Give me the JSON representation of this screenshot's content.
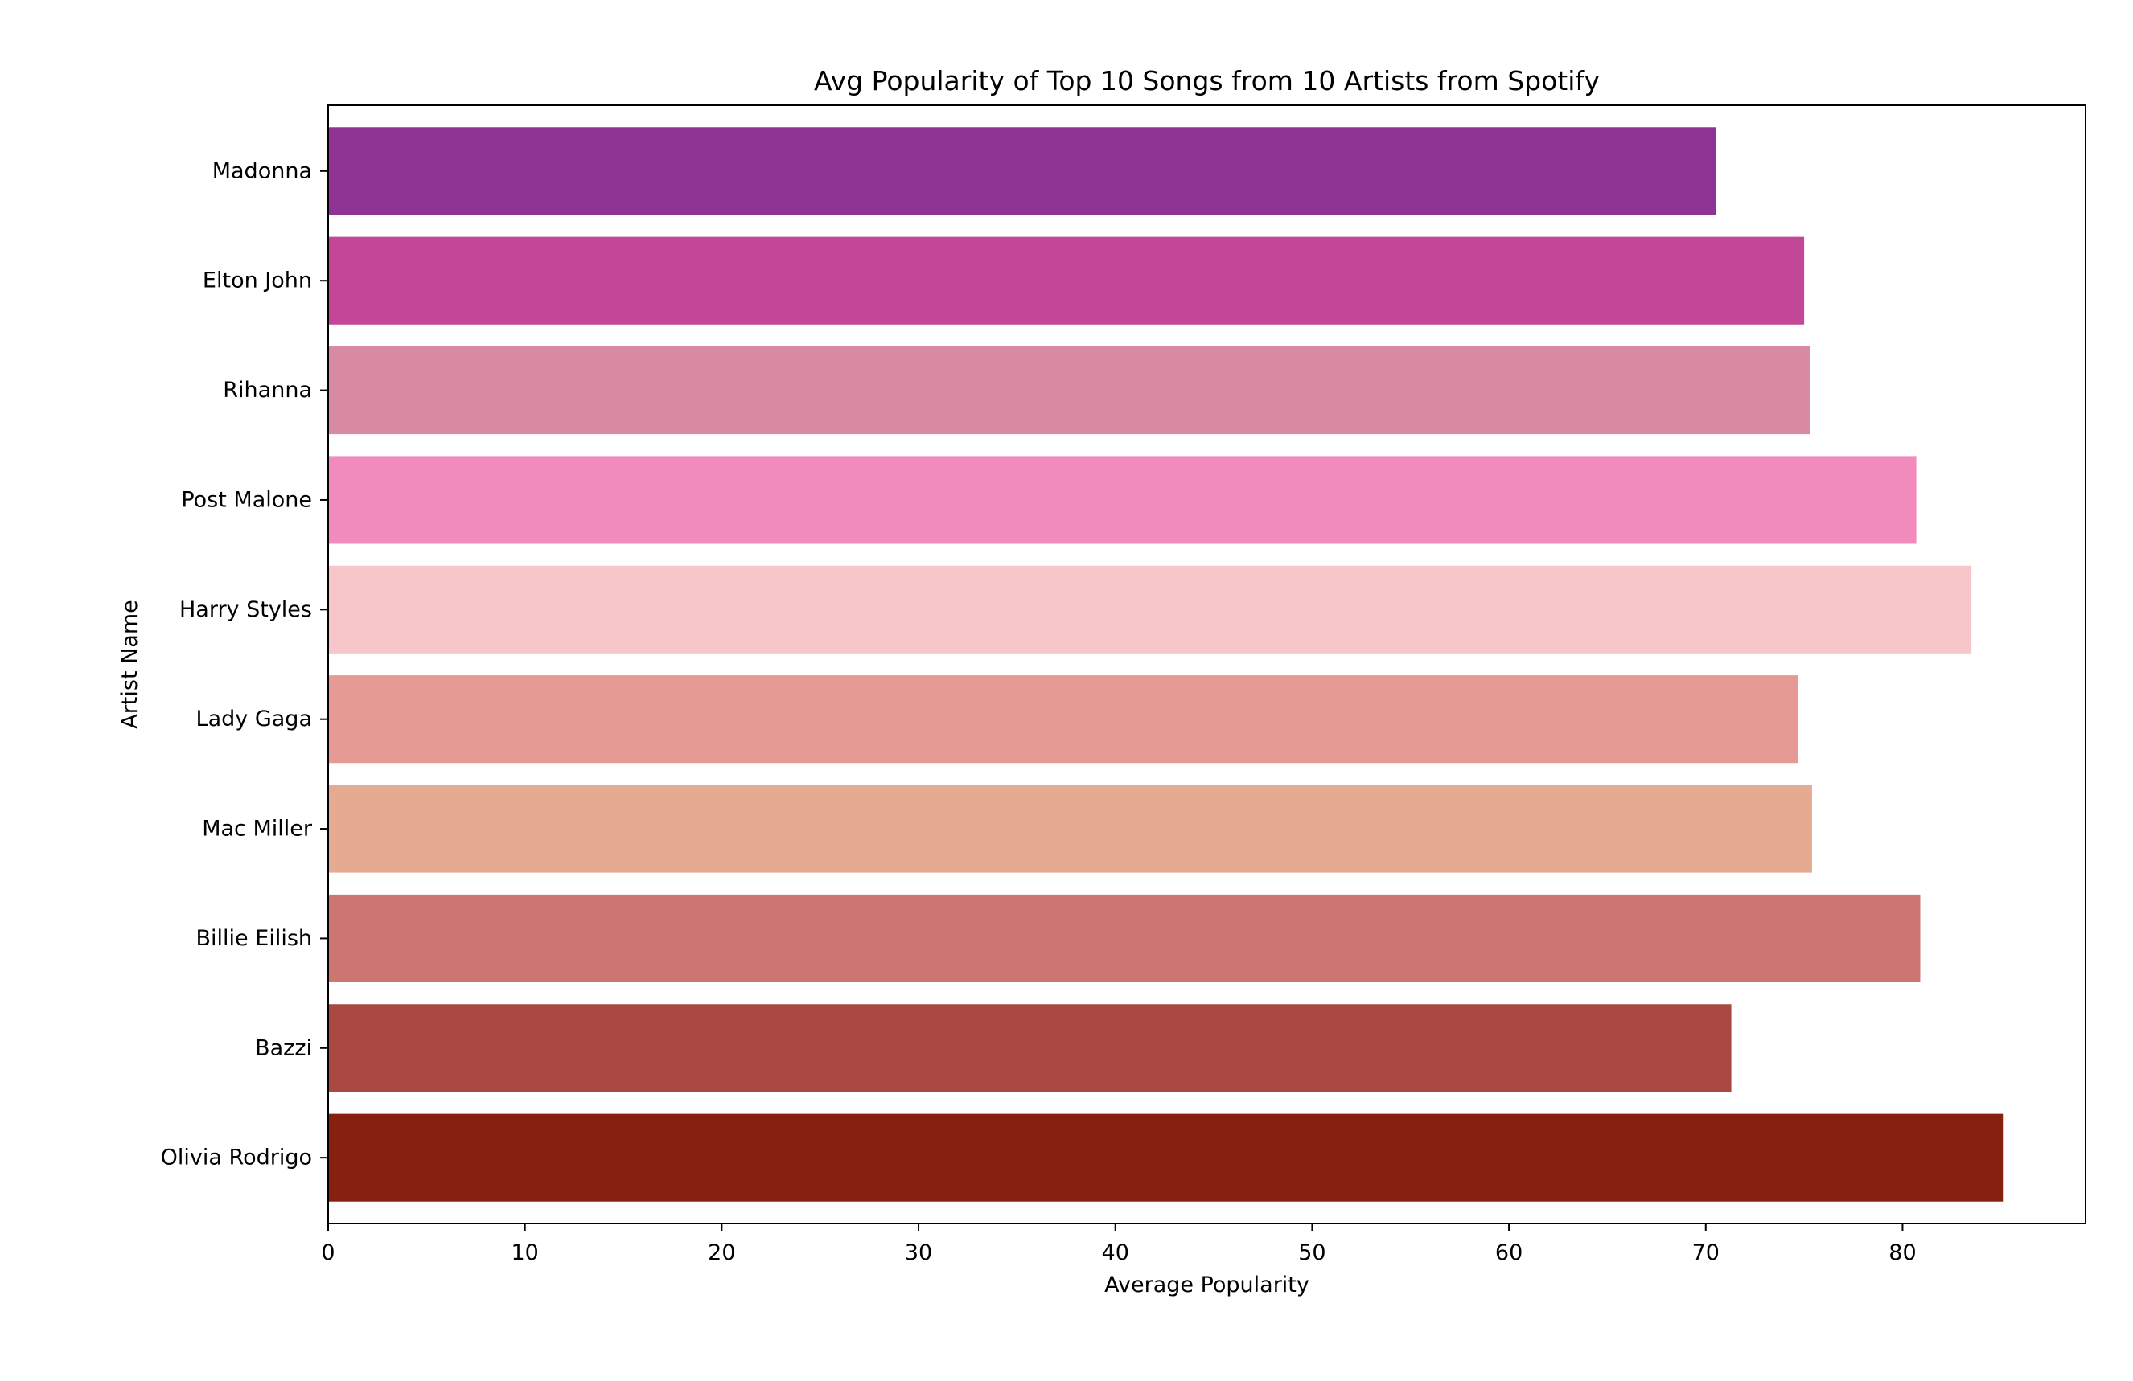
{
  "chart_data": {
    "type": "bar",
    "orientation": "horizontal",
    "title": "Avg Popularity of Top 10 Songs from 10 Artists from Spotify",
    "xlabel": "Average Popularity",
    "ylabel": "Artist Name",
    "xlim": [
      0,
      89.3
    ],
    "xticks": [
      0,
      10,
      20,
      30,
      40,
      50,
      60,
      70,
      80
    ],
    "grid": false,
    "legend": "none",
    "categories": [
      "Madonna",
      "Elton John",
      "Rihanna",
      "Post Malone",
      "Harry Styles",
      "Lady Gaga",
      "Mac Miller",
      "Billie Eilish",
      "Bazzi",
      "Olivia Rodrigo"
    ],
    "values": [
      70.5,
      75.0,
      75.3,
      80.7,
      83.5,
      74.7,
      75.4,
      80.9,
      71.3,
      85.1
    ],
    "colors": [
      "#8e3393",
      "#c44696",
      "#d78aa1",
      "#f18bbe",
      "#f7c6cb",
      "#e69a94",
      "#e5aa92",
      "#cb7670",
      "#a94840",
      "#86200f"
    ]
  }
}
